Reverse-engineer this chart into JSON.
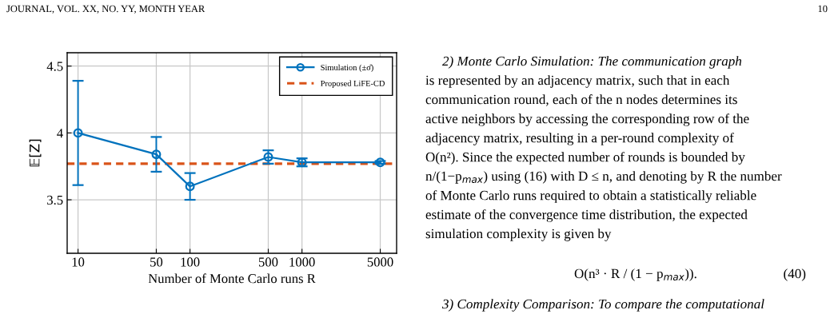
{
  "chart_data": {
    "type": "line",
    "x": [
      10,
      50,
      100,
      500,
      1000,
      5000
    ],
    "series": [
      {
        "name": "Simulation (±σ̂)",
        "color": "#0072bd",
        "values": [
          4.0,
          3.84,
          3.6,
          3.82,
          3.78,
          3.78
        ],
        "errors": [
          0.39,
          0.13,
          0.1,
          0.05,
          0.03,
          0.01
        ],
        "marker": "circle"
      }
    ],
    "ref_lines": [
      {
        "axis": "y",
        "value": 3.77,
        "label": "Proposed LiFE-CD",
        "color": "#d95319",
        "line_style": "dashed"
      }
    ],
    "log": "x",
    "xlim": [
      8,
      7000
    ],
    "xticks": [
      10,
      50,
      100,
      500,
      1000,
      5000
    ],
    "ylim": [
      3.1,
      4.6
    ],
    "yticks": [
      {
        "value": 3.5,
        "label": "3.5"
      },
      {
        "value": 4,
        "label": "4"
      },
      {
        "value": 4.5,
        "label": "4.5"
      }
    ],
    "xlabel": "Number of Monte Carlo runs R",
    "ylabel": "𝔼[Z]",
    "grid": true,
    "legend": "top right",
    "line_style": "solid",
    "annotations": [
      "JOURNAL, VOL. XX, NO. YY, MONTH YEAR",
      "10",
      "2) Monte Carlo Simulation: The communication graph",
      "is represented by an adjacency matrix, such that in each",
      "communication round, each of the n nodes determines its",
      "active neighbors by accessing the corresponding row of the",
      "adjacency matrix, resulting in a per-round complexity of",
      "O(n²). Since the expected number of rounds is bounded by",
      "n/(1−p$_{max}$) using (16) with D ≤ n, and denoting by R the number",
      "of Monte Carlo runs required to obtain a statistically reliable",
      "estimate of the convergence time distribution, the expected",
      "simulation complexity is given by",
      "O(n³ · R / (1 − p$_{max}$)).",
      "(40)",
      "3) Complexity Comparison: To compare the computational"
    ]
  }
}
